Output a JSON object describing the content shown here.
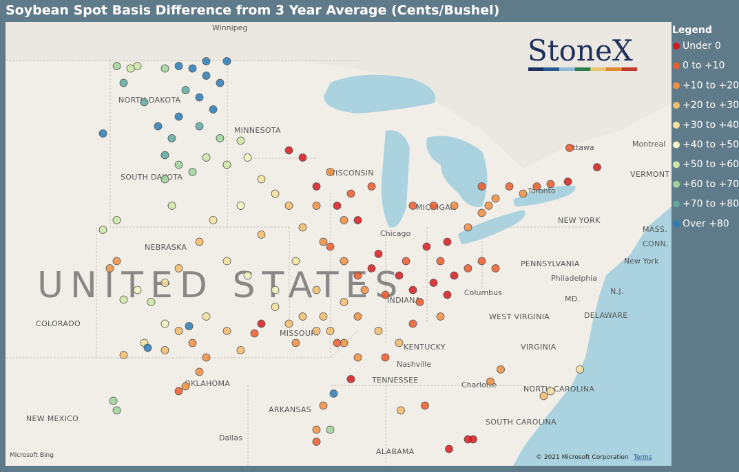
{
  "title": "Soybean Spot Basis Difference from 3 Year Average (Cents/Bushel)",
  "logo": "StoneX",
  "legend": {
    "title": "Legend",
    "items": [
      {
        "label": "Under 0",
        "color": "#d7191c"
      },
      {
        "label": "0 to +10",
        "color": "#ef5a2a"
      },
      {
        "label": "+10 to +20",
        "color": "#f28e3f"
      },
      {
        "label": "+20 to +30",
        "color": "#f5bc6a"
      },
      {
        "label": "+30 to +40",
        "color": "#f7e19a"
      },
      {
        "label": "+40 to +50",
        "color": "#f4f3bd"
      },
      {
        "label": "+50 to +60",
        "color": "#cfe8a6"
      },
      {
        "label": "+60 to +70",
        "color": "#9fd39b"
      },
      {
        "label": "+70 to +80",
        "color": "#5fa9a0"
      },
      {
        "label": "Over +80",
        "color": "#2a7cb8"
      }
    ]
  },
  "map": {
    "labels": [
      "Winnipeg",
      "NORTH DAKOTA",
      "MINNESOTA",
      "SOUTH DAKOTA",
      "NEBRASKA",
      "COLORADO",
      "MISSOURI",
      "KENTUCKY",
      "TENNESSEE",
      "OKLAHOMA",
      "ARKANSAS",
      "NEW MEXICO",
      "Dallas",
      "ALABAMA",
      "SOUTH CAROLINA",
      "NORTH CAROLINA",
      "VIRGINIA",
      "WEST VIRGINIA",
      "PENNSYLVANIA",
      "NEW YORK",
      "Ottawa",
      "Montreal",
      "Toronto",
      "Chicago",
      "Columbus",
      "Nashville",
      "Charlotte",
      "Philadelphia",
      "New York",
      "DELAWARE",
      "MD.",
      "N.J.",
      "MASS.",
      "CONN.",
      "VERMONT",
      "MICHIGAN",
      "INDIANA",
      "WISCONSIN",
      "UNITED STATES"
    ],
    "attribution": "Microsoft Bing",
    "copyright": "© 2021 Microsoft Corporation",
    "terms": "Terms",
    "points": [
      {
        "lon": -100.0,
        "lat": 48.3,
        "bin": 9
      },
      {
        "lon": -99.2,
        "lat": 48.2,
        "bin": 9
      },
      {
        "lon": -98.4,
        "lat": 47.9,
        "bin": 9
      },
      {
        "lon": -97.6,
        "lat": 47.6,
        "bin": 9
      },
      {
        "lon": -98.8,
        "lat": 47.0,
        "bin": 9
      },
      {
        "lon": -98.0,
        "lat": 46.5,
        "bin": 9
      },
      {
        "lon": -99.6,
        "lat": 47.3,
        "bin": 8
      },
      {
        "lon": -100.8,
        "lat": 48.2,
        "bin": 7
      },
      {
        "lon": -102.4,
        "lat": 48.3,
        "bin": 6
      },
      {
        "lon": -103.2,
        "lat": 47.6,
        "bin": 8
      },
      {
        "lon": -102.0,
        "lat": 46.8,
        "bin": 8
      },
      {
        "lon": -101.2,
        "lat": 45.8,
        "bin": 9
      },
      {
        "lon": -100.4,
        "lat": 45.3,
        "bin": 8
      },
      {
        "lon": -104.4,
        "lat": 45.5,
        "bin": 9
      },
      {
        "lon": -97.2,
        "lat": 48.5,
        "bin": 9
      },
      {
        "lon": -98.4,
        "lat": 48.5,
        "bin": 9
      },
      {
        "lon": -102.8,
        "lat": 48.2,
        "bin": 6
      },
      {
        "lon": -103.6,
        "lat": 48.3,
        "bin": 7
      },
      {
        "lon": -100.0,
        "lat": 46.2,
        "bin": 9
      },
      {
        "lon": -98.8,
        "lat": 45.8,
        "bin": 8
      },
      {
        "lon": -97.6,
        "lat": 45.3,
        "bin": 7
      },
      {
        "lon": -96.4,
        "lat": 45.2,
        "bin": 6
      },
      {
        "lon": -98.4,
        "lat": 44.5,
        "bin": 6
      },
      {
        "lon": -97.2,
        "lat": 44.2,
        "bin": 6
      },
      {
        "lon": -99.2,
        "lat": 43.9,
        "bin": 7
      },
      {
        "lon": -96.0,
        "lat": 44.5,
        "bin": 5
      },
      {
        "lon": -100.8,
        "lat": 44.6,
        "bin": 8
      },
      {
        "lon": -100.0,
        "lat": 44.2,
        "bin": 7
      },
      {
        "lon": -100.8,
        "lat": 43.6,
        "bin": 7
      },
      {
        "lon": -100.4,
        "lat": 42.5,
        "bin": 6
      },
      {
        "lon": -103.6,
        "lat": 41.9,
        "bin": 6
      },
      {
        "lon": -104.4,
        "lat": 41.5,
        "bin": 6
      },
      {
        "lon": -95.2,
        "lat": 43.6,
        "bin": 4
      },
      {
        "lon": -94.4,
        "lat": 43.0,
        "bin": 4
      },
      {
        "lon": -93.6,
        "lat": 42.5,
        "bin": 3
      },
      {
        "lon": -96.4,
        "lat": 42.5,
        "bin": 5
      },
      {
        "lon": -98.0,
        "lat": 41.9,
        "bin": 4
      },
      {
        "lon": -98.8,
        "lat": 41.0,
        "bin": 3
      },
      {
        "lon": -97.2,
        "lat": 40.2,
        "bin": 4
      },
      {
        "lon": -96.0,
        "lat": 39.6,
        "bin": 5
      },
      {
        "lon": -94.4,
        "lat": 39.0,
        "bin": 5
      },
      {
        "lon": -93.2,
        "lat": 40.2,
        "bin": 4
      },
      {
        "lon": -95.2,
        "lat": 41.3,
        "bin": 3
      },
      {
        "lon": -92.8,
        "lat": 41.6,
        "bin": 3
      },
      {
        "lon": -92.0,
        "lat": 42.5,
        "bin": 2
      },
      {
        "lon": -91.6,
        "lat": 41.0,
        "bin": 2
      },
      {
        "lon": -100.0,
        "lat": 39.9,
        "bin": 3
      },
      {
        "lon": -100.8,
        "lat": 39.3,
        "bin": 4
      },
      {
        "lon": -102.4,
        "lat": 39.0,
        "bin": 5
      },
      {
        "lon": -103.2,
        "lat": 38.6,
        "bin": 6
      },
      {
        "lon": -104.0,
        "lat": 39.9,
        "bin": 2
      },
      {
        "lon": -103.6,
        "lat": 40.2,
        "bin": 2
      },
      {
        "lon": -101.6,
        "lat": 38.5,
        "bin": 6
      },
      {
        "lon": -91.2,
        "lat": 40.8,
        "bin": 1
      },
      {
        "lon": -90.4,
        "lat": 40.2,
        "bin": 2
      },
      {
        "lon": -89.6,
        "lat": 39.6,
        "bin": 1
      },
      {
        "lon": -88.8,
        "lat": 39.9,
        "bin": 0
      },
      {
        "lon": -88.4,
        "lat": 40.5,
        "bin": 0
      },
      {
        "lon": -89.2,
        "lat": 39.0,
        "bin": 2
      },
      {
        "lon": -88.0,
        "lat": 38.8,
        "bin": 1
      },
      {
        "lon": -90.4,
        "lat": 38.5,
        "bin": 3
      },
      {
        "lon": -91.6,
        "lat": 37.9,
        "bin": 3
      },
      {
        "lon": -89.6,
        "lat": 37.9,
        "bin": 2
      },
      {
        "lon": -87.2,
        "lat": 39.6,
        "bin": 0
      },
      {
        "lon": -86.4,
        "lat": 39.0,
        "bin": 0
      },
      {
        "lon": -86.8,
        "lat": 40.2,
        "bin": 1
      },
      {
        "lon": -92.0,
        "lat": 39.0,
        "bin": 3
      },
      {
        "lon": -91.2,
        "lat": 37.3,
        "bin": 3
      },
      {
        "lon": -85.6,
        "lat": 40.8,
        "bin": 0
      },
      {
        "lon": -84.8,
        "lat": 40.2,
        "bin": 1
      },
      {
        "lon": -84.0,
        "lat": 39.6,
        "bin": 0
      },
      {
        "lon": -85.2,
        "lat": 39.3,
        "bin": 0
      },
      {
        "lon": -84.4,
        "lat": 41.0,
        "bin": 0
      },
      {
        "lon": -83.2,
        "lat": 39.9,
        "bin": 1
      },
      {
        "lon": -82.4,
        "lat": 40.2,
        "bin": 1
      },
      {
        "lon": -81.6,
        "lat": 39.9,
        "bin": 1
      },
      {
        "lon": -84.4,
        "lat": 38.8,
        "bin": 0
      },
      {
        "lon": -86.0,
        "lat": 38.5,
        "bin": 1
      },
      {
        "lon": -93.6,
        "lat": 44.8,
        "bin": 0
      },
      {
        "lon": -92.8,
        "lat": 44.5,
        "bin": 0
      },
      {
        "lon": -92.0,
        "lat": 43.3,
        "bin": 0
      },
      {
        "lon": -90.8,
        "lat": 42.5,
        "bin": 0
      },
      {
        "lon": -91.2,
        "lat": 43.9,
        "bin": 2
      },
      {
        "lon": -90.0,
        "lat": 43.0,
        "bin": 1
      },
      {
        "lon": -89.6,
        "lat": 41.9,
        "bin": 0
      },
      {
        "lon": -88.8,
        "lat": 43.3,
        "bin": 1
      },
      {
        "lon": -90.4,
        "lat": 41.9,
        "bin": 2
      },
      {
        "lon": -86.4,
        "lat": 42.5,
        "bin": 1
      },
      {
        "lon": -85.2,
        "lat": 42.5,
        "bin": 1
      },
      {
        "lon": -84.0,
        "lat": 42.5,
        "bin": 2
      },
      {
        "lon": -82.4,
        "lat": 43.3,
        "bin": 1
      },
      {
        "lon": -81.6,
        "lat": 42.8,
        "bin": 2
      },
      {
        "lon": -82.4,
        "lat": 42.2,
        "bin": 2
      },
      {
        "lon": -83.2,
        "lat": 41.6,
        "bin": 2
      },
      {
        "lon": -80.8,
        "lat": 43.3,
        "bin": 1
      },
      {
        "lon": -80.0,
        "lat": 43.0,
        "bin": 2
      },
      {
        "lon": -79.2,
        "lat": 43.3,
        "bin": 1
      },
      {
        "lon": -78.4,
        "lat": 43.4,
        "bin": 1
      },
      {
        "lon": -77.4,
        "lat": 43.5,
        "bin": 0
      },
      {
        "lon": -77.3,
        "lat": 44.9,
        "bin": 1
      },
      {
        "lon": -75.7,
        "lat": 44.1,
        "bin": 0
      },
      {
        "lon": -82.0,
        "lat": 42.5,
        "bin": 2
      },
      {
        "lon": -100.0,
        "lat": 37.3,
        "bin": 3
      },
      {
        "lon": -99.2,
        "lat": 36.8,
        "bin": 2
      },
      {
        "lon": -98.4,
        "lat": 36.2,
        "bin": 2
      },
      {
        "lon": -98.8,
        "lat": 35.6,
        "bin": 2
      },
      {
        "lon": -99.6,
        "lat": 35.0,
        "bin": 2
      },
      {
        "lon": -100.8,
        "lat": 36.5,
        "bin": 3
      },
      {
        "lon": -102.0,
        "lat": 36.8,
        "bin": 4
      },
      {
        "lon": -103.2,
        "lat": 36.3,
        "bin": 3
      },
      {
        "lon": -101.8,
        "lat": 36.6,
        "bin": 9
      },
      {
        "lon": -99.4,
        "lat": 37.5,
        "bin": 9
      },
      {
        "lon": -98.4,
        "lat": 37.9,
        "bin": 4
      },
      {
        "lon": -97.2,
        "lat": 37.3,
        "bin": 3
      },
      {
        "lon": -96.4,
        "lat": 36.5,
        "bin": 3
      },
      {
        "lon": -95.6,
        "lat": 37.2,
        "bin": 1
      },
      {
        "lon": -95.2,
        "lat": 37.6,
        "bin": 0
      },
      {
        "lon": -100.8,
        "lat": 37.6,
        "bin": 5
      },
      {
        "lon": -100.0,
        "lat": 34.8,
        "bin": 1
      },
      {
        "lon": -103.8,
        "lat": 34.4,
        "bin": 7
      },
      {
        "lon": -103.6,
        "lat": 34.0,
        "bin": 7
      },
      {
        "lon": -93.6,
        "lat": 37.6,
        "bin": 3
      },
      {
        "lon": -92.8,
        "lat": 37.9,
        "bin": 3
      },
      {
        "lon": -94.4,
        "lat": 38.3,
        "bin": 4
      },
      {
        "lon": -92.0,
        "lat": 37.3,
        "bin": 3
      },
      {
        "lon": -93.2,
        "lat": 36.8,
        "bin": 2
      },
      {
        "lon": -90.4,
        "lat": 36.8,
        "bin": 2
      },
      {
        "lon": -89.6,
        "lat": 36.2,
        "bin": 2
      },
      {
        "lon": -90.0,
        "lat": 35.3,
        "bin": 0
      },
      {
        "lon": -90.8,
        "lat": 36.8,
        "bin": 1
      },
      {
        "lon": -88.0,
        "lat": 36.2,
        "bin": 1
      },
      {
        "lon": -88.4,
        "lat": 37.3,
        "bin": 3
      },
      {
        "lon": -87.2,
        "lat": 36.8,
        "bin": 3
      },
      {
        "lon": -91.6,
        "lat": 34.2,
        "bin": 2
      },
      {
        "lon": -91.0,
        "lat": 34.7,
        "bin": 9
      },
      {
        "lon": -92.0,
        "lat": 33.2,
        "bin": 2
      },
      {
        "lon": -92.0,
        "lat": 32.7,
        "bin": 1
      },
      {
        "lon": -91.2,
        "lat": 33.2,
        "bin": 7
      },
      {
        "lon": -87.1,
        "lat": 34.0,
        "bin": 3
      },
      {
        "lon": -85.7,
        "lat": 34.2,
        "bin": 1
      },
      {
        "lon": -84.3,
        "lat": 32.4,
        "bin": 0
      },
      {
        "lon": -83.2,
        "lat": 32.8,
        "bin": 0
      },
      {
        "lon": -82.9,
        "lat": 32.8,
        "bin": 0
      },
      {
        "lon": -81.9,
        "lat": 35.2,
        "bin": 2
      },
      {
        "lon": -81.3,
        "lat": 35.7,
        "bin": 2
      },
      {
        "lon": -78.4,
        "lat": 34.8,
        "bin": 4
      },
      {
        "lon": -78.8,
        "lat": 34.6,
        "bin": 3
      },
      {
        "lon": -76.7,
        "lat": 35.7,
        "bin": 4
      },
      {
        "lon": -86.4,
        "lat": 37.6,
        "bin": 1
      },
      {
        "lon": -84.8,
        "lat": 37.9,
        "bin": 2
      }
    ]
  }
}
